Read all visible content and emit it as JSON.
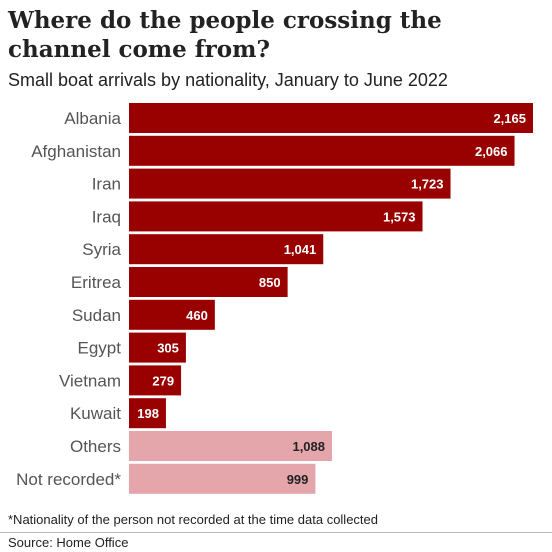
{
  "title": "Where do the people crossing the channel come from?",
  "subtitle": "Small boat arrivals by nationality, January to June 2022",
  "footnote": "*Nationality of the person not recorded at the time data collected",
  "source": "Source: Home Office",
  "colors": {
    "primary_bar": "#990000",
    "secondary_bar": "#e4a6ab",
    "label_on_primary": "#ffffff",
    "label_on_secondary": "#222222"
  },
  "chart_data": {
    "type": "bar",
    "orientation": "horizontal",
    "categories": [
      "Albania",
      "Afghanistan",
      "Iran",
      "Iraq",
      "Syria",
      "Eritrea",
      "Sudan",
      "Egypt",
      "Vietnam",
      "Kuwait",
      "Others",
      "Not recorded*"
    ],
    "values": [
      2165,
      2066,
      1723,
      1573,
      1041,
      850,
      460,
      305,
      279,
      198,
      1088,
      999
    ],
    "value_labels": [
      "2,165",
      "2,066",
      "1,723",
      "1,573",
      "1,041",
      "850",
      "460",
      "305",
      "279",
      "198",
      "1,088",
      "999"
    ],
    "highlight": [
      "primary",
      "primary",
      "primary",
      "primary",
      "primary",
      "primary",
      "primary",
      "primary",
      "primary",
      "primary",
      "secondary",
      "secondary"
    ],
    "title": "Where do the people crossing the channel come from?",
    "subtitle": "Small boat arrivals by nationality, January to June 2022",
    "xlim": [
      0,
      2165
    ],
    "grid": false,
    "legend": "none"
  }
}
